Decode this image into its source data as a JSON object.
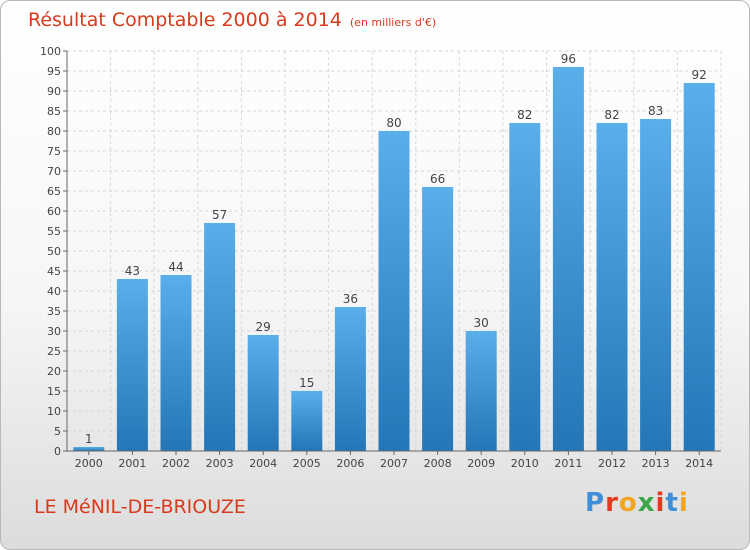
{
  "header": {
    "title": "Résultat Comptable 2000 à 2014",
    "unit": "(en milliers d'€)"
  },
  "footer": {
    "commune": "LE MéNIL-DE-BRIOUZE",
    "brand": "Proxiti"
  },
  "colors": {
    "title": "#d83a1c",
    "bar_top": "#5aaeea",
    "bar_bottom": "#2476b6",
    "brand_letters": [
      "#3c8fd8",
      "#e23a1e",
      "#f3a522",
      "#3aa64a",
      "#e23a1e",
      "#3c8fd8",
      "#f3a522"
    ]
  },
  "chart_data": {
    "type": "bar",
    "title": "Résultat Comptable 2000 à 2014",
    "xlabel": "",
    "ylabel": "",
    "categories": [
      "2000",
      "2001",
      "2002",
      "2003",
      "2004",
      "2005",
      "2006",
      "2007",
      "2008",
      "2009",
      "2010",
      "2011",
      "2012",
      "2013",
      "2014"
    ],
    "values": [
      1,
      43,
      44,
      57,
      29,
      15,
      36,
      80,
      66,
      30,
      82,
      96,
      82,
      83,
      92
    ],
    "ylim": [
      0,
      100
    ],
    "yticks": [
      0,
      5,
      10,
      15,
      20,
      25,
      30,
      35,
      40,
      45,
      50,
      55,
      60,
      65,
      70,
      75,
      80,
      85,
      90,
      95,
      100
    ],
    "grid": true,
    "data_labels": true
  }
}
